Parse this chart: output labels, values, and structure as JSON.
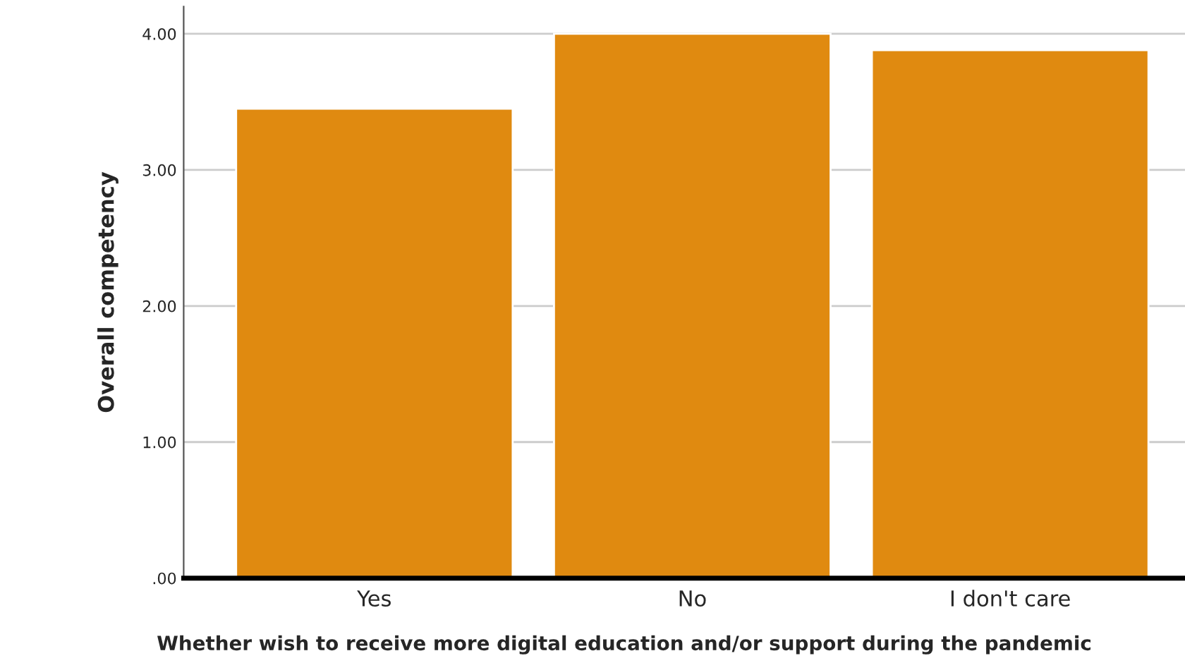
{
  "chart_data": {
    "type": "bar",
    "xlabel": "Whether wish to receive more digital education and/or support during the pandemic",
    "ylabel": "Overall competency",
    "categories": [
      "Yes",
      "No",
      "I don't care"
    ],
    "values": [
      3.45,
      4.0,
      3.88
    ],
    "color": "#e08a10",
    "ylim": [
      0,
      4.2
    ],
    "yticks": [
      {
        "value": 0,
        "label": ".00"
      },
      {
        "value": 1,
        "label": "1.00"
      },
      {
        "value": 2,
        "label": "2.00"
      },
      {
        "value": 3,
        "label": "3.00"
      },
      {
        "value": 4,
        "label": "4.00"
      }
    ],
    "grid": "y"
  }
}
